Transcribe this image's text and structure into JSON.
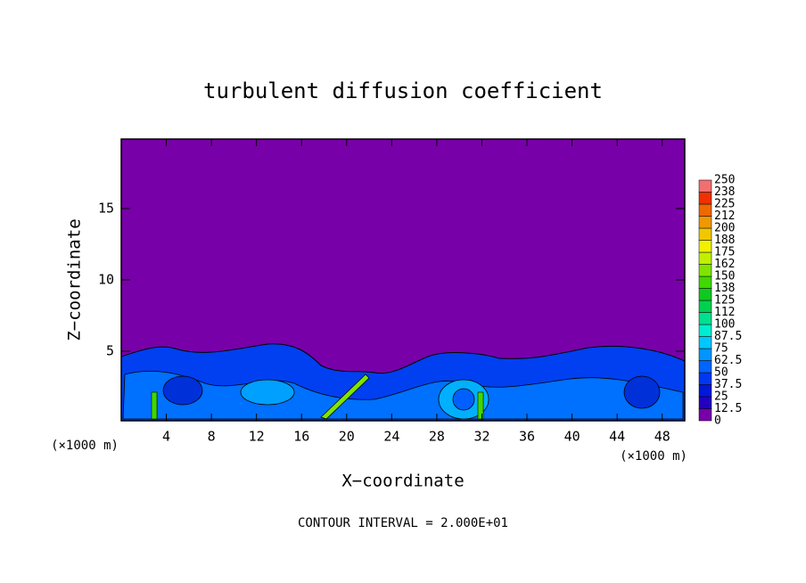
{
  "chart_data": {
    "type": "contour",
    "title": "turbulent diffusion coefficient",
    "x_label": "X−coordinate",
    "y_label": "Z−coordinate",
    "x_unit": "(×1000 m)",
    "y_unit": "(×1000 m)",
    "footer": "CONTOUR INTERVAL = 2.000E+01",
    "xlim": [
      0,
      50
    ],
    "xticks": [
      4,
      8,
      12,
      16,
      20,
      24,
      28,
      32,
      36,
      40,
      44,
      48
    ],
    "ylim": [
      0,
      20
    ],
    "yticks": [
      5,
      10,
      15
    ],
    "background_color": "#7800a8",
    "colorbar": {
      "levels": [
        0,
        12.5,
        25,
        37.5,
        50,
        62.5,
        75,
        87.5,
        100,
        112,
        125,
        138,
        150,
        162,
        175,
        188,
        200,
        212,
        225,
        238,
        250
      ],
      "colors": [
        "#7800a8",
        "#2400c0",
        "#0018d8",
        "#0038f0",
        "#0064ff",
        "#0096ff",
        "#00c8ff",
        "#00ecd0",
        "#00e090",
        "#00d050",
        "#10c820",
        "#40d800",
        "#80e400",
        "#c0f000",
        "#f0f000",
        "#f0c800",
        "#f09800",
        "#f06800",
        "#f03000",
        "#f07070"
      ]
    }
  }
}
